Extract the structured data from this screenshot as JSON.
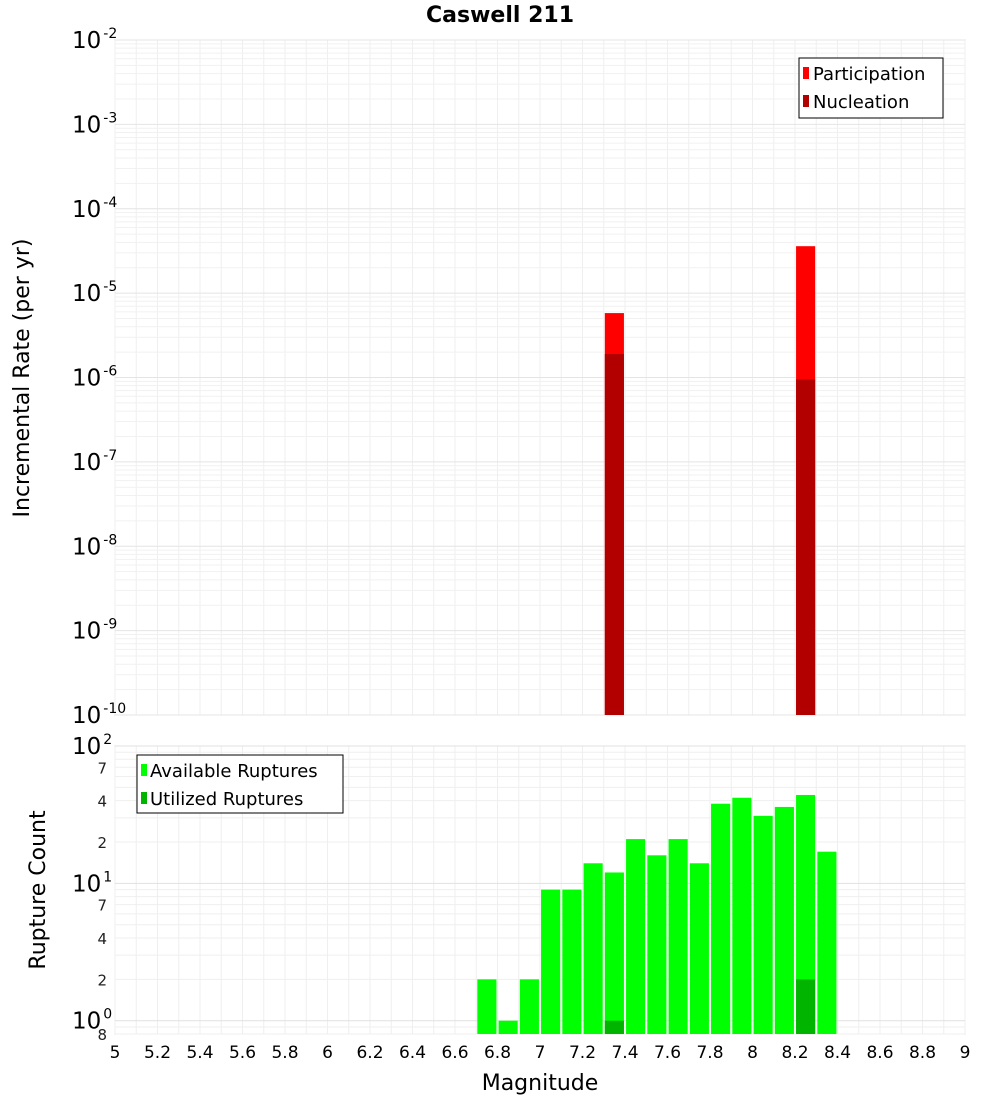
{
  "title": "Caswell 211",
  "xlabel": "Magnitude",
  "ylabel_top": "Incremental Rate (per yr)",
  "ylabel_bottom": "Rupture Count",
  "x_tick_labels": [
    "5",
    "5.2",
    "5.4",
    "5.6",
    "5.8",
    "6",
    "6.2",
    "6.4",
    "6.6",
    "6.8",
    "7",
    "7.2",
    "7.4",
    "7.6",
    "7.8",
    "8",
    "8.2",
    "8.4",
    "8.6",
    "8.8",
    "9"
  ],
  "top_tick_labels": [
    {
      "base": "10",
      "exp": "-2"
    },
    {
      "base": "10",
      "exp": "-3"
    },
    {
      "base": "10",
      "exp": "-4"
    },
    {
      "base": "10",
      "exp": "-5"
    },
    {
      "base": "10",
      "exp": "-6"
    },
    {
      "base": "10",
      "exp": "-7"
    },
    {
      "base": "10",
      "exp": "-8"
    },
    {
      "base": "10",
      "exp": "-9"
    },
    {
      "base": "10",
      "exp": "-10"
    }
  ],
  "bottom_tick_labels": [
    {
      "base": "10",
      "exp": "2"
    },
    {
      "base": "10",
      "exp": "1"
    },
    {
      "base": "10",
      "exp": "0"
    }
  ],
  "bottom_minor_labels": [
    "7",
    "4",
    "2",
    "7",
    "4",
    "2",
    "8"
  ],
  "chart_data": [
    {
      "type": "bar",
      "xlabel": "Magnitude",
      "ylabel": "Incremental Rate (per yr)",
      "xlim": [
        5,
        9
      ],
      "ylim": [
        1e-10,
        0.01
      ],
      "yscale": "log",
      "grid": true,
      "legend_position": "top-right",
      "series": [
        {
          "name": "Participation",
          "color": "#ff0000",
          "x": [
            7.35,
            8.25
          ],
          "values": [
            5.8e-06,
            3.6e-05
          ]
        },
        {
          "name": "Nucleation",
          "color": "#b20000",
          "x": [
            7.35,
            8.25
          ],
          "values": [
            1.9e-06,
            9.5e-07
          ]
        }
      ]
    },
    {
      "type": "bar",
      "xlabel": "Magnitude",
      "ylabel": "Rupture Count",
      "xlim": [
        5,
        9
      ],
      "ylim": [
        0.8,
        100
      ],
      "yscale": "log",
      "grid": true,
      "legend_position": "top-left",
      "series": [
        {
          "name": "Available Ruptures",
          "color": "#00ff00",
          "x": [
            6.75,
            6.85,
            6.95,
            7.05,
            7.15,
            7.25,
            7.35,
            7.45,
            7.55,
            7.65,
            7.75,
            7.85,
            7.95,
            8.05,
            8.15,
            8.25,
            8.35
          ],
          "values": [
            2,
            1,
            2,
            9,
            9,
            14,
            12,
            21,
            16,
            21,
            14,
            38,
            42,
            31,
            36,
            44,
            17
          ]
        },
        {
          "name": "Utilized Ruptures",
          "color": "#00b400",
          "x": [
            7.35,
            8.25
          ],
          "values": [
            1,
            2
          ]
        }
      ]
    }
  ]
}
